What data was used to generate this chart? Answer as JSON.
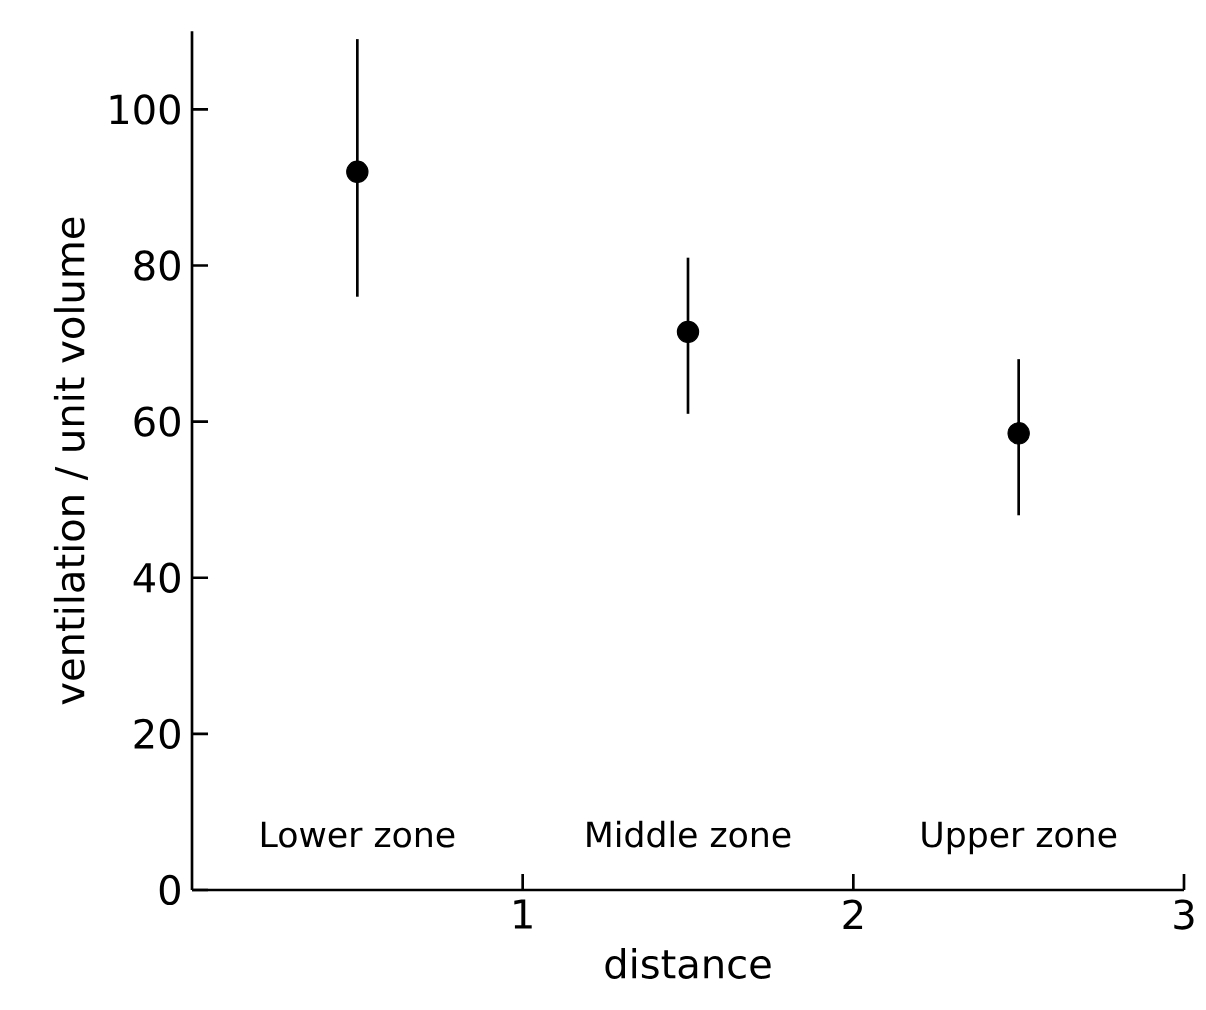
{
  "chart_data": {
    "type": "scatter",
    "xlabel": "distance",
    "ylabel": "ventilation / unit volume",
    "x": [
      0.5,
      1.5,
      2.5
    ],
    "values": [
      92,
      71.5,
      58.5
    ],
    "color": "#000000",
    "marker": "circle",
    "errors": [
      [
        76,
        109
      ],
      [
        61,
        81
      ],
      [
        48,
        68
      ]
    ],
    "xlim": [
      0,
      3
    ],
    "ylim": [
      0,
      110
    ],
    "xticks": [
      1,
      2,
      3
    ],
    "yticks": [
      0,
      20,
      40,
      60,
      80,
      100
    ],
    "annotations": [
      "Lower zone",
      "Middle zone",
      "Upper zone"
    ],
    "grid": false
  }
}
